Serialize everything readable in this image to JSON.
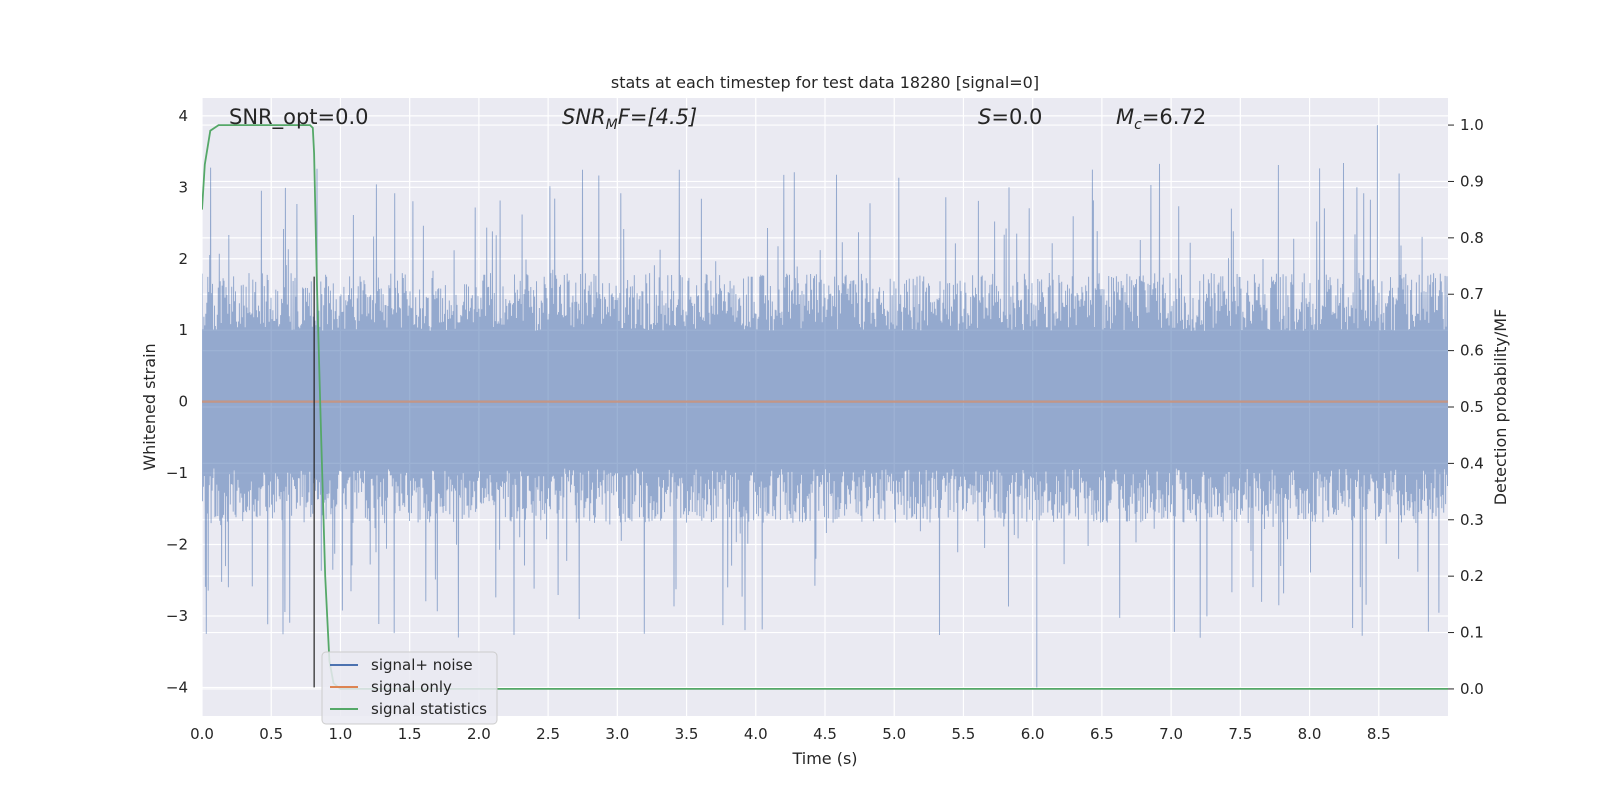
{
  "chart_data": {
    "type": "line",
    "title": "stats at each timestep for test data 18280 [signal=0]",
    "xlabel": "Time (s)",
    "ylabel": "Whitened strain",
    "y2label": "Detection probability/MF",
    "xlim": [
      0.0,
      9.0
    ],
    "ylim": [
      -4.4,
      4.25
    ],
    "y2lim": [
      -0.048,
      1.048
    ],
    "x_ticks": [
      0.0,
      0.5,
      1.0,
      1.5,
      2.0,
      2.5,
      3.0,
      3.5,
      4.0,
      4.5,
      5.0,
      5.5,
      6.0,
      6.5,
      7.0,
      7.5,
      8.0,
      8.5
    ],
    "x_tick_labels": [
      "0.0",
      "0.5",
      "1.0",
      "1.5",
      "2.0",
      "2.5",
      "3.0",
      "3.5",
      "4.0",
      "4.5",
      "5.0",
      "5.5",
      "6.0",
      "6.5",
      "7.0",
      "7.5",
      "8.0",
      "8.5"
    ],
    "y_ticks": [
      -4,
      -3,
      -2,
      -1,
      0,
      1,
      2,
      3,
      4
    ],
    "y_tick_labels": [
      "−4",
      "−3",
      "−2",
      "−1",
      "0",
      "1",
      "2",
      "3",
      "4"
    ],
    "y2_ticks": [
      0.0,
      0.1,
      0.2,
      0.3,
      0.4,
      0.5,
      0.6,
      0.7,
      0.8,
      0.9,
      1.0
    ],
    "y2_tick_labels": [
      "0.0",
      "0.1",
      "0.2",
      "0.3",
      "0.4",
      "0.5",
      "0.6",
      "0.7",
      "0.8",
      "0.9",
      "1.0"
    ],
    "grid": true,
    "legend_position": "lower-left",
    "annotations": {
      "snr_opt": "SNR_opt=0.0",
      "snr_mf_name": "SNR",
      "snr_mf_sub": "M",
      "snr_mf_rest": "F=[4.5]",
      "s_name": "S",
      "s_rest": "=0.0",
      "mc_name": "M",
      "mc_sub": "c",
      "mc_rest": "=6.72"
    },
    "marker_line_x": 0.81,
    "marker_line_y": [
      -4.0,
      1.75
    ],
    "series": [
      {
        "name": "signal+ noise",
        "color": "#4c72b0",
        "kind": "noise",
        "x_range": [
          0.0,
          9.0
        ],
        "typical_range": [
          -1.7,
          1.8
        ],
        "min": -4.0,
        "max": 3.87
      },
      {
        "name": "signal only",
        "color": "#dd8452",
        "x": [
          0.0,
          9.0
        ],
        "y": [
          0.0,
          0.0
        ]
      },
      {
        "name": "signal statistics",
        "color": "#55a868",
        "axis": "right",
        "x": [
          0.0,
          0.02,
          0.06,
          0.12,
          0.3,
          0.5,
          0.7,
          0.78,
          0.8,
          0.81,
          0.83,
          0.86,
          0.89,
          0.92,
          0.95,
          1.0,
          2.0,
          4.0,
          6.0,
          8.0,
          9.0
        ],
        "y": [
          0.85,
          0.93,
          0.99,
          1.0,
          1.0,
          1.0,
          1.0,
          1.0,
          0.995,
          0.95,
          0.72,
          0.45,
          0.2,
          0.05,
          0.01,
          0.0,
          0.0,
          0.0,
          0.0,
          0.0,
          0.0
        ]
      }
    ]
  }
}
